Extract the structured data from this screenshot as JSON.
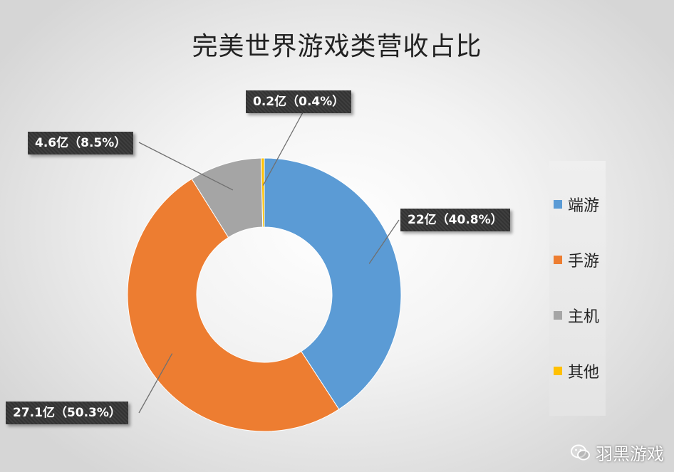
{
  "chart_data": {
    "type": "donut",
    "title": "完美世界游戏类营收占比",
    "categories": [
      "端游",
      "手游",
      "主机",
      "其他"
    ],
    "values": [
      22,
      27.1,
      4.6,
      0.2
    ],
    "percents": [
      40.8,
      50.3,
      8.5,
      0.4
    ],
    "colors": [
      "#5b9bd5",
      "#ed7d31",
      "#a5a5a5",
      "#ffc000"
    ],
    "data_labels": [
      "22亿（40.8%）",
      "27.1亿（50.3%）",
      "4.6亿（8.5%）",
      "0.2亿（0.4%）"
    ],
    "legend_position": "right",
    "start_angle": "12 o'clock, clockwise"
  },
  "watermark": {
    "text": "羽黑游戏"
  }
}
